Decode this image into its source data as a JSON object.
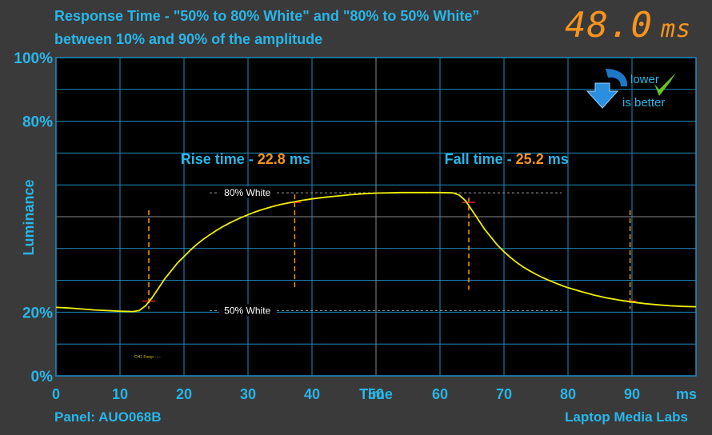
{
  "title_line1": "Response Time - \"50% to 80% White\" and \"80% to 50% White”",
  "title_line2": "between 10% and 90% of the amplitude",
  "readout": {
    "value": "48.0",
    "unit": "ms"
  },
  "badge": {
    "icon": "down-arrow-icon",
    "check_icon": "checkmark-icon",
    "line1": "lower",
    "line2": "is better"
  },
  "panel_label": "Panel: AUO068B",
  "brand_label": "Laptop Media Labs",
  "small_label": "CH1 Freq> ----",
  "colors": {
    "background": "#3a3a3a",
    "plot": "#000000",
    "grid": "#1e8ec4",
    "accent_blue": "#29b6e8",
    "accent_orange": "#f7941d",
    "trace": "#f0f000",
    "marker_red": "#e02020"
  },
  "chart_data": {
    "type": "line",
    "title": "Response Time - \"50% to 80% White\" and \"80% to 50% White” between 10% and 90% of the amplitude",
    "xlabel": "Time",
    "x_unit": "ms",
    "ylabel": "Luminance",
    "xlim": [
      0,
      100
    ],
    "ylim": [
      0,
      100
    ],
    "x_ticks": [
      0,
      10,
      20,
      30,
      40,
      50,
      60,
      70,
      80,
      90
    ],
    "x_tick_labels": [
      "0",
      "10",
      "20",
      "30",
      "40",
      "50",
      "60",
      "70",
      "80",
      "90"
    ],
    "y_ticks": [
      0,
      20,
      80,
      100
    ],
    "y_tick_labels": [
      "0%",
      "20%",
      "80%",
      "100%"
    ],
    "grid": true,
    "reference_lines": [
      {
        "label": "80% White",
        "y": 57.5
      },
      {
        "label": "50% White",
        "y": 20.5
      }
    ],
    "annotations": [
      {
        "label": "Rise time - ",
        "value": "22.8",
        "unit": "ms"
      },
      {
        "label": "Fall time - ",
        "value": "25.2",
        "unit": "ms"
      }
    ],
    "rise_markers": [
      14.5,
      37.3
    ],
    "fall_markers": [
      64.5,
      89.7
    ],
    "series": [
      {
        "values": [
          [
            0,
            21.5
          ],
          [
            2,
            21.3
          ],
          [
            4,
            21.0
          ],
          [
            6,
            20.7
          ],
          [
            8,
            20.5
          ],
          [
            10,
            20.3
          ],
          [
            12,
            20.2
          ],
          [
            13,
            20.5
          ],
          [
            14,
            22.0
          ],
          [
            15,
            24.5
          ],
          [
            16,
            27.5
          ],
          [
            17,
            30.5
          ],
          [
            18,
            33.0
          ],
          [
            19,
            35.5
          ],
          [
            20,
            37.5
          ],
          [
            21,
            39.5
          ],
          [
            22,
            41.3
          ],
          [
            23,
            42.9
          ],
          [
            24,
            44.3
          ],
          [
            25,
            45.6
          ],
          [
            26,
            46.8
          ],
          [
            27,
            47.9
          ],
          [
            28,
            48.9
          ],
          [
            29,
            49.8
          ],
          [
            30,
            50.6
          ],
          [
            31,
            51.4
          ],
          [
            32,
            52.1
          ],
          [
            33,
            52.7
          ],
          [
            34,
            53.3
          ],
          [
            35,
            53.8
          ],
          [
            36,
            54.2
          ],
          [
            37,
            54.6
          ],
          [
            38,
            55.0
          ],
          [
            40,
            55.6
          ],
          [
            42,
            56.1
          ],
          [
            44,
            56.5
          ],
          [
            46,
            56.9
          ],
          [
            48,
            57.2
          ],
          [
            50,
            57.4
          ],
          [
            52,
            57.5
          ],
          [
            54,
            57.6
          ],
          [
            56,
            57.6
          ],
          [
            58,
            57.6
          ],
          [
            60,
            57.6
          ],
          [
            62,
            57.5
          ],
          [
            63,
            56.8
          ],
          [
            64,
            55.0
          ],
          [
            65,
            52.0
          ],
          [
            66,
            49.0
          ],
          [
            67,
            46.0
          ],
          [
            68,
            43.5
          ],
          [
            69,
            41.0
          ],
          [
            70,
            39.0
          ],
          [
            71,
            37.2
          ],
          [
            72,
            35.6
          ],
          [
            73,
            34.2
          ],
          [
            74,
            33.0
          ],
          [
            75,
            31.9
          ],
          [
            76,
            30.9
          ],
          [
            77,
            30.0
          ],
          [
            78,
            29.2
          ],
          [
            79,
            28.4
          ],
          [
            80,
            27.7
          ],
          [
            82,
            26.5
          ],
          [
            84,
            25.4
          ],
          [
            86,
            24.5
          ],
          [
            88,
            23.8
          ],
          [
            90,
            23.2
          ],
          [
            92,
            22.7
          ],
          [
            94,
            22.3
          ],
          [
            96,
            22.0
          ],
          [
            98,
            21.8
          ],
          [
            100,
            21.7
          ]
        ]
      }
    ]
  }
}
